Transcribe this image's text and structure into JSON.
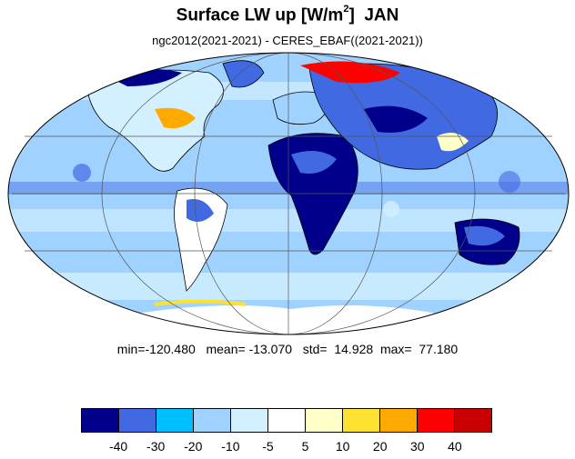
{
  "title": {
    "main": "Surface LW up [W/m",
    "sup": "2",
    "close": "]",
    "month": "JAN"
  },
  "subtitle": "ngc2012(2021-2021) - CERES_EBAF((2021-2021))",
  "stats": {
    "min_label": "min=",
    "min": "-120.480",
    "mean_label": "mean=",
    "mean": "-13.070",
    "std_label": "std=",
    "std": "14.928",
    "max_label": "max=",
    "max": "77.180"
  },
  "colorbar": {
    "colors": [
      "#00008b",
      "#4169e1",
      "#00bfff",
      "#a0d2ff",
      "#d2f0ff",
      "#ffffff",
      "#ffffc8",
      "#ffe132",
      "#ffaa00",
      "#ff0000",
      "#c80000"
    ],
    "labels": [
      "-40",
      "-30",
      "-20",
      "-10",
      "-5",
      "5",
      "10",
      "20",
      "30",
      "40"
    ]
  },
  "colors": {
    "ocean_background": "#a0d2ff",
    "land_outline": "#000000",
    "gridline": "#555555"
  }
}
